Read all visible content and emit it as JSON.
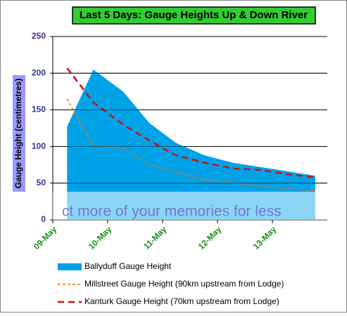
{
  "chart_data": {
    "type": "area-line",
    "title": "Last 5 Days: Gauge Heights Up & Down River",
    "y_label": "Gauge Height  (centimetres)",
    "x": [
      0.26,
      0.74,
      1.28,
      1.76,
      2.24,
      2.76,
      3.27,
      3.78,
      4.29,
      4.78
    ],
    "series": [
      {
        "name": "Ballyduff Gauge Height",
        "style": "area",
        "color": "#00a2e8",
        "values": [
          127,
          205,
          175,
          132,
          105,
          88,
          78,
          72,
          66,
          60
        ]
      },
      {
        "name": "Millstreet Gauge Height (90km upstream from Lodge)",
        "style": "dashed",
        "color": "#e07a10",
        "values": [
          165,
          100,
          98,
          75,
          65,
          55,
          50,
          46,
          42,
          40
        ]
      },
      {
        "name": "Kanturk Gauge Height (70km upstream from Lodge)",
        "style": "dashed",
        "color": "#d01010",
        "values": [
          207,
          160,
          130,
          108,
          88,
          78,
          70,
          68,
          62,
          58
        ]
      }
    ],
    "xlim": [
      0,
      5
    ],
    "xticks": [
      {
        "value": 0,
        "label": "09-May"
      },
      {
        "value": 1,
        "label": "10-May"
      },
      {
        "value": 2,
        "label": "11-May"
      },
      {
        "value": 3,
        "label": "12-May"
      },
      {
        "value": 4,
        "label": "13-May"
      }
    ],
    "ylim": [
      0,
      250
    ],
    "yticks": [
      0,
      50,
      100,
      150,
      200,
      250
    ],
    "grid": true,
    "annotation": "ct more of your memories for less"
  }
}
